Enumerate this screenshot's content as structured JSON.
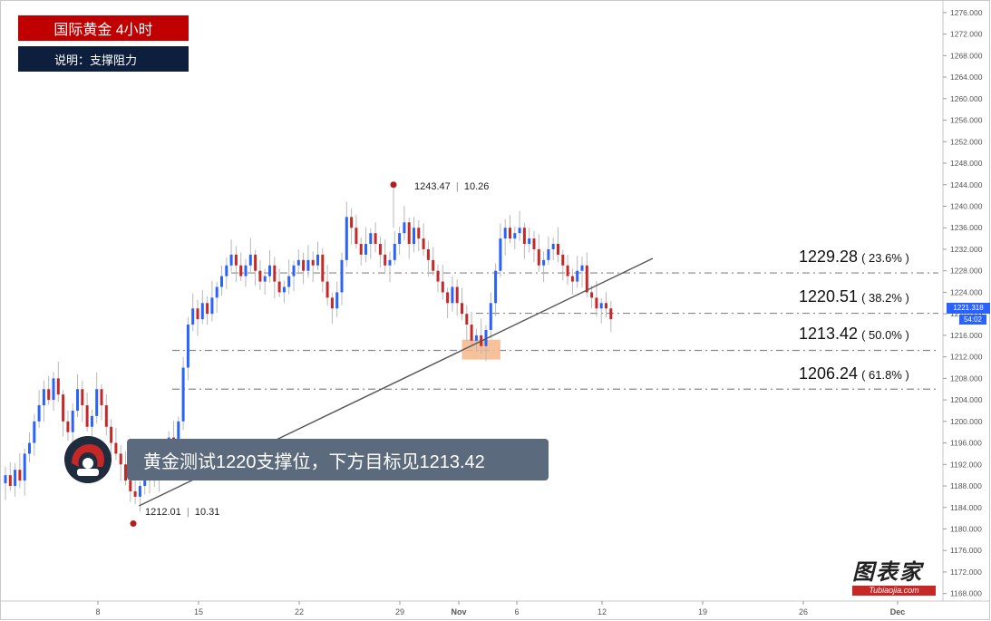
{
  "header": {
    "title": "国际黄金 4小时",
    "subtitle": "说明：支撑阻力"
  },
  "callout": {
    "text": "黄金测试1220支撑位，下方目标见1213.42"
  },
  "price_tag": {
    "price": "1221.318",
    "countdown": "54:02",
    "color": "#2962ff"
  },
  "annotations": {
    "high": {
      "price": "1243.47",
      "bars": "10.26"
    },
    "low": {
      "price": "1212.01",
      "bars": "10.31"
    }
  },
  "watermark": {
    "brand": "图表家",
    "site": "Tubiaojia.com"
  },
  "colors": {
    "up": "#2962ff",
    "down": "#c62828",
    "title_bg": "#c00000",
    "subtitle_bg": "#0d1f3c",
    "callout_bg": "#5b6b7d",
    "highlight": "#f5b78a"
  },
  "chart_data": {
    "type": "candlestick",
    "symbol": "国际黄金",
    "timeframe": "4小时",
    "y_axis": {
      "min": 1168,
      "max": 1276,
      "step": 4,
      "side": "right"
    },
    "x_ticks": [
      "8",
      "15",
      "22",
      "29",
      "Nov",
      "6",
      "12",
      "19",
      "26",
      "Dec"
    ],
    "fib_levels": [
      {
        "price": "1229.28",
        "pct": "23.6%",
        "value": 1227.6
      },
      {
        "price": "1220.51",
        "pct": "38.2%",
        "value": 1220.1
      },
      {
        "price": "1213.42",
        "pct": "50.0%",
        "value": 1213.2
      },
      {
        "price": "1206.24",
        "pct": "61.8%",
        "value": 1206.0
      }
    ],
    "trendline": {
      "from": [
        1,
        1184.3
      ],
      "to": [
        139,
        1230.3
      ]
    },
    "support_zone": {
      "x_from": 95,
      "x_to": 103,
      "y_from": 1211.5,
      "y_to": 1215.2
    },
    "high_point": {
      "bar": 85,
      "value": 1244
    },
    "low_point": {
      "bar": 26,
      "value": 1181
    },
    "close_series": [
      1190,
      1188,
      1191,
      1189,
      1194,
      1196,
      1200,
      1203,
      1206,
      1204,
      1208,
      1205,
      1200,
      1198,
      1202,
      1206,
      1203,
      1199,
      1201,
      1206,
      1203,
      1199,
      1196,
      1194,
      1192,
      1189,
      1187,
      1186,
      1188,
      1191,
      1189,
      1192,
      1190,
      1194,
      1197,
      1195,
      1200,
      1210,
      1218,
      1221,
      1219,
      1222,
      1220,
      1223,
      1225,
      1227,
      1229,
      1231,
      1229,
      1227,
      1229,
      1231,
      1228,
      1226,
      1227,
      1229,
      1226,
      1224,
      1225,
      1227,
      1229,
      1230,
      1228,
      1230,
      1229,
      1231,
      1226,
      1223,
      1221,
      1224,
      1230,
      1238,
      1236,
      1233,
      1231,
      1233,
      1235,
      1233,
      1231,
      1229,
      1230,
      1233,
      1235,
      1237,
      1233,
      1236,
      1234,
      1232,
      1230,
      1228,
      1226,
      1224,
      1222,
      1225,
      1222,
      1220,
      1218,
      1215,
      1216,
      1214,
      1217,
      1222,
      1228,
      1234,
      1236,
      1234,
      1235,
      1236,
      1233,
      1234,
      1232,
      1229,
      1230,
      1232,
      1233,
      1231,
      1229,
      1227,
      1226,
      1228,
      1229,
      1224,
      1223,
      1221,
      1222,
      1221,
      1219
    ]
  }
}
